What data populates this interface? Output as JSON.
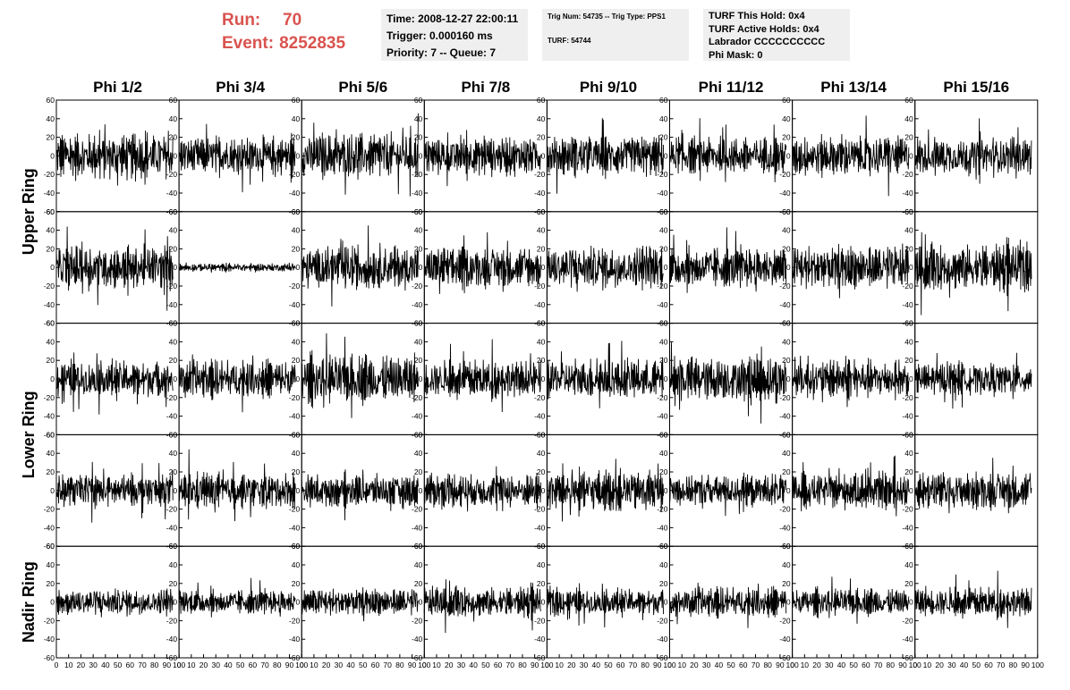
{
  "header": {
    "run_label": "Run:",
    "run_value": "70",
    "event_label": "Event:",
    "event_value": "8252835",
    "time": "Time: 2008-12-27 22:00:11",
    "trigger": "Trigger: 0.000160 ms",
    "priority": "Priority: 7 -- Queue: 7",
    "trig_num": "Trig Num: 54735 -- Trig Type: PPS1",
    "turf": "TURF: 54744",
    "turf_hold": "TURF This Hold: 0x4",
    "turf_active": "TURF Active Holds: 0x4",
    "labrador": "Labrador CCCCCCCCCC",
    "phi_mask": "Phi Mask: 0",
    "accent_color": "#d9534f"
  },
  "chart_data": {
    "type": "line",
    "columns": [
      "Phi 1/2",
      "Phi 3/4",
      "Phi 5/6",
      "Phi 7/8",
      "Phi 9/10",
      "Phi 11/12",
      "Phi 13/14",
      "Phi 15/16"
    ],
    "ring_labels": [
      "Upper Ring",
      "Lower Ring",
      "Nadir Ring"
    ],
    "rows_per_ring": [
      2,
      2,
      1
    ],
    "xlim": [
      0,
      100
    ],
    "ylim": [
      -60,
      60
    ],
    "x_ticks": [
      "0",
      "10",
      "20",
      "30",
      "40",
      "50",
      "60",
      "70",
      "80",
      "90",
      "100"
    ],
    "y_ticks": [
      "60",
      "40",
      "20",
      "0",
      "-20",
      "-40",
      "-60"
    ],
    "samples_per_trace": 260,
    "trace_x_max": 95,
    "trace_amplitude": [
      [
        17,
        14,
        17,
        14,
        15,
        14,
        15,
        14
      ],
      [
        16,
        3,
        16,
        15,
        16,
        15,
        16,
        17
      ],
      [
        14,
        14,
        18,
        14,
        15,
        17,
        14,
        12
      ],
      [
        12,
        13,
        12,
        13,
        15,
        12,
        13,
        14
      ],
      [
        10,
        9,
        10,
        11,
        10,
        11,
        10,
        11
      ]
    ],
    "grid": false,
    "line_color": "#000000"
  }
}
